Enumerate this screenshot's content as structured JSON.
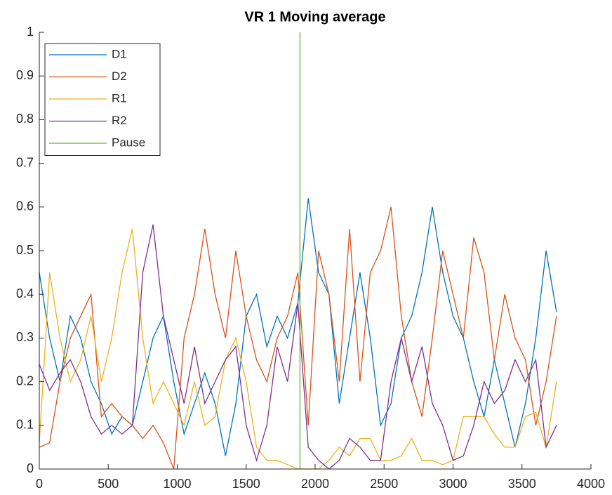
{
  "chart_data": {
    "type": "line",
    "title": "VR 1 Moving average",
    "x": [
      0,
      75,
      150,
      225,
      300,
      375,
      450,
      525,
      600,
      675,
      750,
      825,
      900,
      975,
      1050,
      1125,
      1200,
      1275,
      1350,
      1425,
      1500,
      1575,
      1650,
      1725,
      1800,
      1875,
      1950,
      2025,
      2100,
      2175,
      2250,
      2325,
      2400,
      2475,
      2550,
      2625,
      2700,
      2775,
      2850,
      2925,
      3000,
      3075,
      3150,
      3225,
      3300,
      3375,
      3450,
      3525,
      3600,
      3675,
      3750
    ],
    "series": [
      {
        "name": "D1",
        "color": "#0072bd",
        "values": [
          0.45,
          0.3,
          0.2,
          0.35,
          0.3,
          0.2,
          0.15,
          0.08,
          0.12,
          0.1,
          0.2,
          0.3,
          0.35,
          0.2,
          0.08,
          0.15,
          0.22,
          0.15,
          0.03,
          0.15,
          0.35,
          0.4,
          0.28,
          0.35,
          0.3,
          0.38,
          0.62,
          0.45,
          0.4,
          0.15,
          0.3,
          0.45,
          0.3,
          0.1,
          0.15,
          0.3,
          0.35,
          0.45,
          0.6,
          0.45,
          0.35,
          0.3,
          0.2,
          0.12,
          0.25,
          0.15,
          0.05,
          0.15,
          0.3,
          0.5,
          0.36
        ]
      },
      {
        "name": "D2",
        "color": "#d95319",
        "values": [
          0.05,
          0.06,
          0.2,
          0.3,
          0.35,
          0.4,
          0.12,
          0.15,
          0.12,
          0.1,
          0.07,
          0.1,
          0.06,
          0,
          0.3,
          0.4,
          0.55,
          0.4,
          0.3,
          0.5,
          0.35,
          0.25,
          0.2,
          0.3,
          0.35,
          0.45,
          0.1,
          0.5,
          0.4,
          0.2,
          0.55,
          0.2,
          0.45,
          0.5,
          0.6,
          0.35,
          0.2,
          0.12,
          0.3,
          0.5,
          0.4,
          0.3,
          0.53,
          0.45,
          0.25,
          0.4,
          0.3,
          0.25,
          0.1,
          0.2,
          0.35
        ]
      },
      {
        "name": "R1",
        "color": "#edb120",
        "values": [
          0.06,
          0.45,
          0.3,
          0.2,
          0.25,
          0.35,
          0.2,
          0.3,
          0.45,
          0.55,
          0.3,
          0.15,
          0.2,
          0.15,
          0.1,
          0.2,
          0.1,
          0.12,
          0.25,
          0.3,
          0.2,
          0.05,
          0.02,
          0.02,
          0.01,
          0,
          0,
          0,
          0.02,
          0.05,
          0.03,
          0.07,
          0.07,
          0.02,
          0.02,
          0.03,
          0.07,
          0.02,
          0.02,
          0.01,
          0.02,
          0.12,
          0.12,
          0.12,
          0.08,
          0.05,
          0.05,
          0.12,
          0.13,
          0.05,
          0.2
        ]
      },
      {
        "name": "R2",
        "color": "#7e2f8e",
        "values": [
          0.24,
          0.18,
          0.22,
          0.25,
          0.2,
          0.12,
          0.08,
          0.1,
          0.08,
          0.1,
          0.45,
          0.56,
          0.35,
          0.25,
          0.15,
          0.28,
          0.15,
          0.2,
          0.25,
          0.28,
          0.1,
          0.02,
          0.1,
          0.28,
          0.2,
          0.38,
          0.05,
          0.02,
          0,
          0.02,
          0.07,
          0.05,
          0.02,
          0.02,
          0.2,
          0.3,
          0.2,
          0.28,
          0.15,
          0.1,
          0.02,
          0.03,
          0.1,
          0.2,
          0.15,
          0.18,
          0.25,
          0.2,
          0.25,
          0.05,
          0.1
        ]
      },
      {
        "name": "Pause",
        "color": "#77ac30",
        "x": [
          1890,
          1890
        ],
        "values": [
          0,
          1
        ]
      }
    ],
    "xlim": [
      0,
      4000
    ],
    "xticks": [
      0,
      500,
      1000,
      1500,
      2000,
      2500,
      3000,
      3500,
      4000
    ],
    "ylim": [
      0,
      1
    ],
    "yticks": [
      0,
      0.1,
      0.2,
      0.3,
      0.4,
      0.5,
      0.6,
      0.7,
      0.8,
      0.9,
      1
    ],
    "legend": "upper left"
  }
}
